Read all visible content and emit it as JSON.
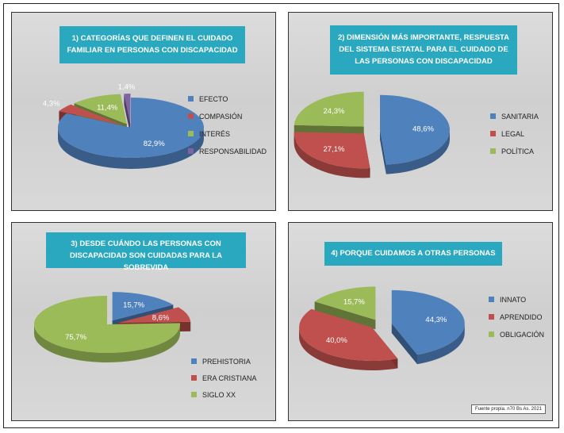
{
  "source_note": "Fuente propia. n70 Bs As. 2021",
  "chart_data": [
    {
      "type": "pie",
      "title": "1) CATEGORÍAS QUE DEFINEN EL CUIDADO FAMILIAR EN PERSONAS CON DISCAPACIDAD",
      "categories": [
        "EFECTO",
        "COMPASIÓN",
        "INTERÉS",
        "RESPONSABILIDAD"
      ],
      "values": [
        82.9,
        4.3,
        11.4,
        1.4
      ],
      "labels": [
        "82,9%",
        "4,3%",
        "11,4%",
        "1,4%"
      ],
      "colors": [
        "#4f81bd",
        "#c0504d",
        "#9bbb59",
        "#8064a2"
      ],
      "exploded": [
        false,
        true,
        true,
        true
      ],
      "legend": "right"
    },
    {
      "type": "pie",
      "title": "2) DIMENSIÓN MÁS IMPORTANTE, RESPUESTA DEL SISTEMA ESTATAL PARA EL CUIDADO DE LAS PERSONAS CON DISCAPACIDAD",
      "categories": [
        "SANITARIA",
        "LEGAL",
        "POLÍTICA"
      ],
      "values": [
        48.6,
        27.1,
        24.3
      ],
      "labels": [
        "48,6%",
        "27,1%",
        "24,3%"
      ],
      "colors": [
        "#4f81bd",
        "#c0504d",
        "#9bbb59"
      ],
      "exploded": [
        true,
        true,
        true
      ],
      "legend": "right"
    },
    {
      "type": "pie",
      "title": "3) DESDE CUÁNDO LAS PERSONAS CON DISCAPACIDAD SON CUIDADAS PARA LA SOBREVIDA",
      "categories": [
        "PREHISTORIA",
        "ERA CRISTIANA",
        "SIGLO XX"
      ],
      "values": [
        15.7,
        8.6,
        75.7
      ],
      "labels": [
        "15,7%",
        "8,6%",
        "75,7%"
      ],
      "colors": [
        "#4f81bd",
        "#c0504d",
        "#9bbb59"
      ],
      "exploded": [
        true,
        true,
        false
      ],
      "legend": "bottom-right"
    },
    {
      "type": "pie",
      "title": "4) PORQUE CUIDAMOS A OTRAS PERSONAS",
      "categories": [
        "INNATO",
        "APRENDIDO",
        "OBLIGACIÓN"
      ],
      "values": [
        44.3,
        40.0,
        15.7
      ],
      "labels": [
        "44,3%",
        "40,0%",
        "15,7%"
      ],
      "colors": [
        "#4f81bd",
        "#c0504d",
        "#9bbb59"
      ],
      "exploded": [
        true,
        true,
        true
      ],
      "legend": "right"
    }
  ]
}
